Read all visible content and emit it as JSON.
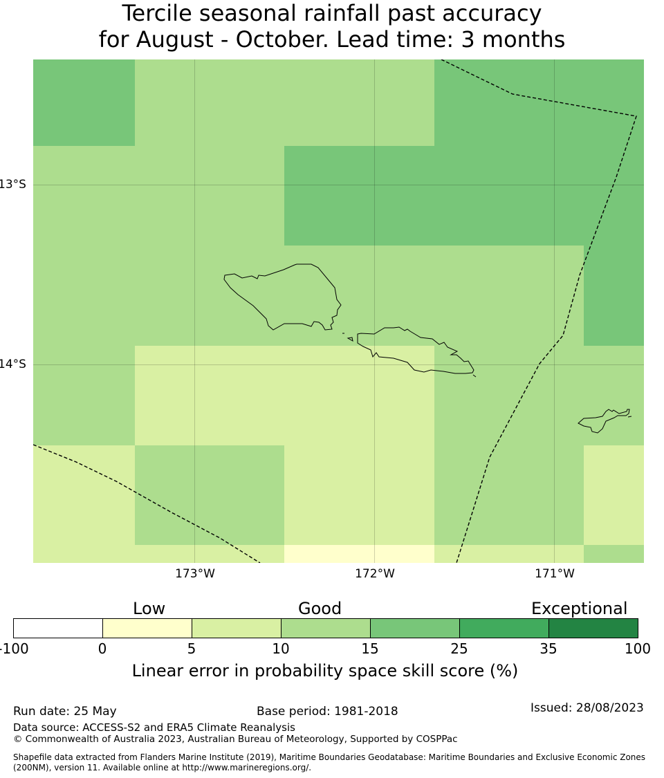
{
  "title": {
    "line1": "Tercile seasonal rainfall past accuracy",
    "line2": "for August - October. Lead time: 3 months"
  },
  "map": {
    "lat_labels": [
      "13°S",
      "14°S"
    ],
    "lon_labels": [
      "173°W",
      "172°W",
      "171°W"
    ],
    "grid_colors": [
      [
        "#78c679",
        "#addd8e",
        "#addd8e",
        "#78c679",
        "#78c679"
      ],
      [
        "#addd8e",
        "#addd8e",
        "#78c679",
        "#78c679",
        "#78c679"
      ],
      [
        "#addd8e",
        "#addd8e",
        "#addd8e",
        "#addd8e",
        "#78c679"
      ],
      [
        "#addd8e",
        "#d9f0a3",
        "#d9f0a3",
        "#addd8e",
        "#addd8e"
      ],
      [
        "#d9f0a3",
        "#addd8e",
        "#d9f0a3",
        "#addd8e",
        "#d9f0a3"
      ],
      [
        "#d9f0a3",
        "#d9f0a3",
        "#ffffcc",
        "#d9f0a3",
        "#addd8e"
      ]
    ]
  },
  "colorbar": {
    "categories": [
      "Low",
      "Good",
      "Exceptional"
    ],
    "colors": [
      "#ffffff",
      "#ffffcc",
      "#d9f0a3",
      "#addd8e",
      "#78c679",
      "#41ab5d",
      "#238443"
    ],
    "ticks": [
      "-100",
      "0",
      "5",
      "10",
      "15",
      "25",
      "35",
      "100"
    ],
    "label": "Linear error in probability space skill score (%)"
  },
  "footer": {
    "run_date": "Run date: 25 May",
    "base_period": "Base period: 1981-2018",
    "issued": "Issued: 28/08/2023",
    "data_source": "Data source: ACCESS-S2 and ERA5 Climate Reanalysis",
    "copyright": "© Commonwealth of Australia 2023, Australian Bureau of Meteorology, Supported by COSPPac",
    "shapefile_1": "Shapefile data extracted from Flanders Marine Institute (2019), Maritime Boundaries Geodatabase: Maritime Boundaries and Exclusive Economic Zones",
    "shapefile_2": "(200NM), version 11. Available online at http://www.marineregions.org/."
  }
}
